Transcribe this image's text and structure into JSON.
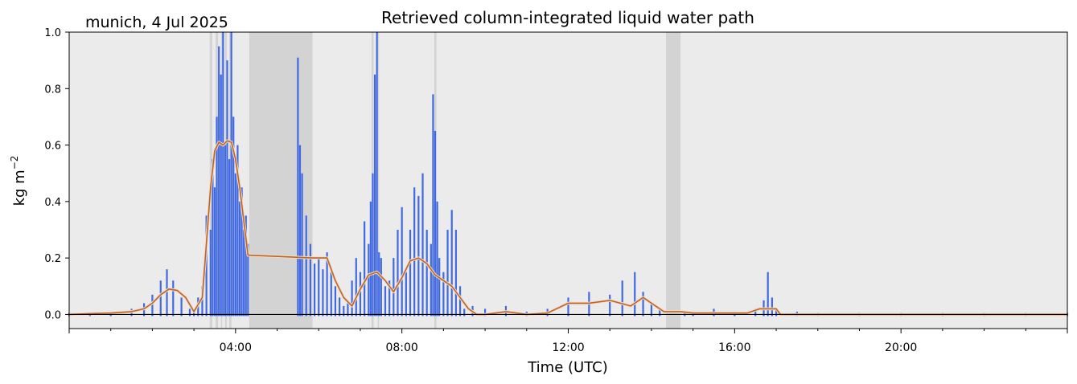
{
  "chart_data": {
    "type": "scatter",
    "title": "Retrieved column-integrated liquid water path",
    "subtitle": "munich, 4 Jul 2025",
    "xlabel": "Time (UTC)",
    "ylabel": "kg m",
    "ylabel_exponent": "−2",
    "xlim": [
      0,
      24
    ],
    "ylim": [
      -0.05,
      1.0
    ],
    "yticks": [
      0.0,
      0.2,
      0.4,
      0.6,
      0.8,
      1.0
    ],
    "ytick_labels": [
      "0.0",
      "0.2",
      "0.4",
      "0.6",
      "0.8",
      "1.0"
    ],
    "xticks": [
      4,
      8,
      12,
      16,
      20
    ],
    "xtick_labels": [
      "04:00",
      "08:00",
      "12:00",
      "16:00",
      "20:00"
    ],
    "grid": false,
    "zero_line": true,
    "colors": {
      "background": "#ebebeb",
      "shaded": "#d3d3d3",
      "points": "#4169e1",
      "smoothed": "#b8662f",
      "smoothed_edge": "#f3d9c3"
    },
    "shaded_intervals": [
      [
        3.38,
        3.44
      ],
      [
        3.52,
        3.58
      ],
      [
        3.65,
        3.68
      ],
      [
        3.75,
        3.79
      ],
      [
        3.85,
        3.9
      ],
      [
        4.33,
        5.85
      ],
      [
        7.27,
        7.32
      ],
      [
        7.42,
        7.45
      ],
      [
        8.78,
        8.83
      ],
      [
        14.35,
        14.7
      ]
    ],
    "series": [
      {
        "kind": "points",
        "x": [
          0.0,
          0.5,
          1.0,
          1.5,
          1.8,
          2.0,
          2.2,
          2.35,
          2.5,
          2.7,
          2.9,
          3.0,
          3.1,
          3.2,
          3.3,
          3.4,
          3.45,
          3.5,
          3.55,
          3.6,
          3.65,
          3.7,
          3.75,
          3.8,
          3.85,
          3.9,
          3.95,
          4.0,
          4.05,
          4.1,
          4.15,
          4.2,
          4.25,
          4.3,
          5.5,
          5.55,
          5.6,
          5.7,
          5.8,
          5.9,
          6.0,
          6.1,
          6.2,
          6.3,
          6.4,
          6.5,
          6.6,
          6.7,
          6.8,
          6.9,
          7.0,
          7.1,
          7.2,
          7.25,
          7.3,
          7.35,
          7.4,
          7.45,
          7.5,
          7.6,
          7.7,
          7.8,
          7.9,
          8.0,
          8.1,
          8.2,
          8.3,
          8.4,
          8.5,
          8.6,
          8.7,
          8.75,
          8.8,
          8.85,
          8.9,
          9.0,
          9.1,
          9.2,
          9.3,
          9.4,
          9.5,
          9.7,
          10.0,
          10.5,
          11.0,
          11.5,
          12.0,
          12.5,
          13.0,
          13.3,
          13.6,
          13.8,
          14.0,
          14.2,
          14.8,
          15.0,
          15.5,
          16.0,
          16.5,
          16.7,
          16.8,
          16.9,
          17.0,
          17.5,
          18.0,
          19.0,
          20.0,
          21.0,
          22.0,
          23.0,
          24.0
        ],
        "y": [
          0.0,
          0.005,
          0.01,
          0.02,
          0.04,
          0.07,
          0.12,
          0.16,
          0.12,
          0.06,
          0.02,
          0.01,
          0.06,
          0.1,
          0.35,
          0.3,
          0.55,
          0.45,
          0.7,
          0.95,
          0.85,
          1.0,
          0.6,
          0.9,
          0.55,
          1.0,
          0.7,
          0.5,
          0.6,
          0.4,
          0.45,
          0.3,
          0.35,
          0.25,
          0.91,
          0.6,
          0.5,
          0.35,
          0.25,
          0.18,
          0.2,
          0.16,
          0.22,
          0.15,
          0.1,
          0.06,
          0.03,
          0.05,
          0.12,
          0.2,
          0.15,
          0.33,
          0.25,
          0.4,
          0.5,
          0.85,
          1.0,
          0.22,
          0.2,
          0.1,
          0.12,
          0.2,
          0.3,
          0.38,
          0.15,
          0.3,
          0.45,
          0.42,
          0.5,
          0.3,
          0.25,
          0.78,
          0.65,
          0.4,
          0.2,
          0.15,
          0.3,
          0.37,
          0.3,
          0.1,
          0.02,
          0.03,
          0.02,
          0.03,
          0.01,
          0.02,
          0.06,
          0.08,
          0.07,
          0.12,
          0.15,
          0.08,
          0.04,
          0.02,
          0.01,
          0.01,
          0.02,
          0.01,
          0.02,
          0.05,
          0.15,
          0.06,
          0.02,
          0.01,
          0.005,
          0.005,
          0.005,
          0.005,
          0.005,
          0.005,
          0.005
        ]
      },
      {
        "kind": "smoothed-line",
        "x": [
          0.0,
          0.5,
          1.0,
          1.5,
          1.8,
          2.0,
          2.2,
          2.4,
          2.6,
          2.8,
          3.0,
          3.2,
          3.3,
          3.4,
          3.5,
          3.6,
          3.7,
          3.8,
          3.9,
          4.0,
          4.1,
          4.2,
          4.3,
          5.85,
          6.0,
          6.2,
          6.4,
          6.6,
          6.8,
          7.0,
          7.2,
          7.4,
          7.6,
          7.8,
          8.0,
          8.2,
          8.4,
          8.6,
          8.8,
          9.0,
          9.2,
          9.4,
          9.6,
          9.8,
          10.0,
          10.5,
          11.0,
          11.5,
          12.0,
          12.5,
          13.0,
          13.5,
          13.8,
          14.0,
          14.3,
          14.7,
          15.0,
          15.5,
          16.0,
          16.3,
          16.6,
          17.0,
          17.1,
          18.0,
          19.0,
          20.0,
          21.0,
          22.0,
          23.0,
          24.0
        ],
        "y": [
          0.0,
          0.003,
          0.005,
          0.01,
          0.02,
          0.04,
          0.07,
          0.09,
          0.085,
          0.06,
          0.01,
          0.06,
          0.25,
          0.45,
          0.58,
          0.61,
          0.6,
          0.615,
          0.61,
          0.55,
          0.45,
          0.33,
          0.21,
          0.2,
          0.2,
          0.2,
          0.12,
          0.06,
          0.03,
          0.09,
          0.14,
          0.15,
          0.12,
          0.08,
          0.13,
          0.19,
          0.2,
          0.18,
          0.14,
          0.12,
          0.1,
          0.06,
          0.02,
          0.0,
          0.0,
          0.01,
          0.0,
          0.005,
          0.04,
          0.04,
          0.05,
          0.03,
          0.06,
          0.04,
          0.01,
          0.01,
          0.005,
          0.005,
          0.005,
          0.005,
          0.02,
          0.02,
          0.0,
          0.0,
          0.0,
          0.0,
          0.0,
          0.0,
          0.0,
          0.0
        ]
      }
    ]
  }
}
